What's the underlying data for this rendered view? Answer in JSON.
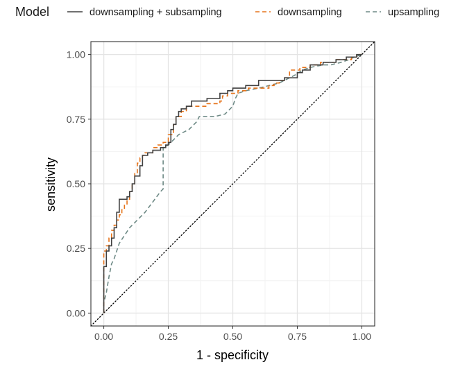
{
  "chart_data": {
    "type": "line",
    "title": "",
    "xlabel": "1 - specificity",
    "ylabel": "sensitivity",
    "xlim": [
      -0.05,
      1.05
    ],
    "ylim": [
      -0.05,
      1.05
    ],
    "x_ticks": [
      "0.00",
      "0.25",
      "0.50",
      "0.75",
      "1.00"
    ],
    "y_ticks": [
      "0.00",
      "0.25",
      "0.50",
      "0.75",
      "1.00"
    ],
    "grid": true,
    "legend": {
      "title": "Model",
      "placement": "top"
    },
    "reference_line": {
      "style": "dotted",
      "color": "#000000",
      "from": [
        0,
        0
      ],
      "to": [
        1,
        1
      ]
    },
    "series": [
      {
        "name": "downsampling + subsampling",
        "color": "#404040",
        "dash": "solid",
        "points": [
          [
            0.0,
            0.0
          ],
          [
            0.0,
            0.18
          ],
          [
            0.01,
            0.18
          ],
          [
            0.01,
            0.24
          ],
          [
            0.02,
            0.24
          ],
          [
            0.02,
            0.26
          ],
          [
            0.03,
            0.26
          ],
          [
            0.03,
            0.29
          ],
          [
            0.04,
            0.29
          ],
          [
            0.04,
            0.33
          ],
          [
            0.05,
            0.33
          ],
          [
            0.05,
            0.39
          ],
          [
            0.06,
            0.39
          ],
          [
            0.06,
            0.44
          ],
          [
            0.09,
            0.44
          ],
          [
            0.09,
            0.45
          ],
          [
            0.1,
            0.45
          ],
          [
            0.1,
            0.47
          ],
          [
            0.11,
            0.47
          ],
          [
            0.11,
            0.5
          ],
          [
            0.12,
            0.5
          ],
          [
            0.12,
            0.53
          ],
          [
            0.14,
            0.53
          ],
          [
            0.14,
            0.57
          ],
          [
            0.15,
            0.57
          ],
          [
            0.15,
            0.61
          ],
          [
            0.17,
            0.61
          ],
          [
            0.17,
            0.62
          ],
          [
            0.19,
            0.62
          ],
          [
            0.19,
            0.63
          ],
          [
            0.22,
            0.63
          ],
          [
            0.22,
            0.64
          ],
          [
            0.24,
            0.64
          ],
          [
            0.24,
            0.65
          ],
          [
            0.25,
            0.65
          ],
          [
            0.25,
            0.66
          ],
          [
            0.26,
            0.66
          ],
          [
            0.26,
            0.71
          ],
          [
            0.27,
            0.71
          ],
          [
            0.27,
            0.73
          ],
          [
            0.28,
            0.73
          ],
          [
            0.28,
            0.76
          ],
          [
            0.29,
            0.76
          ],
          [
            0.29,
            0.78
          ],
          [
            0.3,
            0.78
          ],
          [
            0.3,
            0.79
          ],
          [
            0.32,
            0.79
          ],
          [
            0.32,
            0.8
          ],
          [
            0.34,
            0.8
          ],
          [
            0.34,
            0.82
          ],
          [
            0.4,
            0.82
          ],
          [
            0.4,
            0.83
          ],
          [
            0.45,
            0.83
          ],
          [
            0.45,
            0.85
          ],
          [
            0.48,
            0.85
          ],
          [
            0.48,
            0.86
          ],
          [
            0.5,
            0.86
          ],
          [
            0.5,
            0.87
          ],
          [
            0.55,
            0.87
          ],
          [
            0.55,
            0.88
          ],
          [
            0.6,
            0.88
          ],
          [
            0.6,
            0.9
          ],
          [
            0.7,
            0.9
          ],
          [
            0.7,
            0.91
          ],
          [
            0.75,
            0.91
          ],
          [
            0.75,
            0.93
          ],
          [
            0.77,
            0.93
          ],
          [
            0.77,
            0.94
          ],
          [
            0.8,
            0.94
          ],
          [
            0.8,
            0.96
          ],
          [
            0.85,
            0.96
          ],
          [
            0.85,
            0.97
          ],
          [
            0.9,
            0.97
          ],
          [
            0.9,
            0.98
          ],
          [
            0.94,
            0.98
          ],
          [
            0.94,
            0.99
          ],
          [
            0.98,
            0.99
          ],
          [
            0.98,
            1.0
          ],
          [
            1.0,
            1.0
          ]
        ]
      },
      {
        "name": "downsampling",
        "color": "#e6731a",
        "dash": "dashed",
        "points": [
          [
            0.0,
            0.0
          ],
          [
            0.0,
            0.24
          ],
          [
            0.01,
            0.24
          ],
          [
            0.01,
            0.26
          ],
          [
            0.02,
            0.26
          ],
          [
            0.02,
            0.29
          ],
          [
            0.03,
            0.29
          ],
          [
            0.03,
            0.32
          ],
          [
            0.04,
            0.32
          ],
          [
            0.04,
            0.34
          ],
          [
            0.05,
            0.34
          ],
          [
            0.05,
            0.36
          ],
          [
            0.06,
            0.36
          ],
          [
            0.06,
            0.38
          ],
          [
            0.07,
            0.38
          ],
          [
            0.07,
            0.4
          ],
          [
            0.08,
            0.4
          ],
          [
            0.08,
            0.42
          ],
          [
            0.09,
            0.42
          ],
          [
            0.09,
            0.44
          ],
          [
            0.1,
            0.44
          ],
          [
            0.1,
            0.47
          ],
          [
            0.11,
            0.47
          ],
          [
            0.11,
            0.5
          ],
          [
            0.12,
            0.5
          ],
          [
            0.12,
            0.54
          ],
          [
            0.13,
            0.54
          ],
          [
            0.13,
            0.58
          ],
          [
            0.14,
            0.58
          ],
          [
            0.14,
            0.6
          ],
          [
            0.15,
            0.6
          ],
          [
            0.15,
            0.61
          ],
          [
            0.16,
            0.61
          ],
          [
            0.16,
            0.62
          ],
          [
            0.19,
            0.62
          ],
          [
            0.19,
            0.64
          ],
          [
            0.21,
            0.64
          ],
          [
            0.21,
            0.65
          ],
          [
            0.23,
            0.65
          ],
          [
            0.23,
            0.66
          ],
          [
            0.25,
            0.66
          ],
          [
            0.25,
            0.69
          ],
          [
            0.27,
            0.69
          ],
          [
            0.27,
            0.73
          ],
          [
            0.28,
            0.73
          ],
          [
            0.28,
            0.76
          ],
          [
            0.3,
            0.76
          ],
          [
            0.3,
            0.78
          ],
          [
            0.32,
            0.78
          ],
          [
            0.32,
            0.8
          ],
          [
            0.4,
            0.8
          ],
          [
            0.4,
            0.81
          ],
          [
            0.45,
            0.81
          ],
          [
            0.45,
            0.82
          ],
          [
            0.46,
            0.82
          ],
          [
            0.46,
            0.84
          ],
          [
            0.48,
            0.84
          ],
          [
            0.48,
            0.85
          ],
          [
            0.52,
            0.85
          ],
          [
            0.52,
            0.86
          ],
          [
            0.56,
            0.86
          ],
          [
            0.56,
            0.87
          ],
          [
            0.64,
            0.87
          ],
          [
            0.64,
            0.88
          ],
          [
            0.66,
            0.88
          ],
          [
            0.66,
            0.89
          ],
          [
            0.68,
            0.89
          ],
          [
            0.68,
            0.9
          ],
          [
            0.7,
            0.9
          ],
          [
            0.7,
            0.91
          ],
          [
            0.72,
            0.91
          ],
          [
            0.72,
            0.94
          ],
          [
            0.76,
            0.94
          ],
          [
            0.76,
            0.95
          ],
          [
            0.8,
            0.95
          ],
          [
            0.8,
            0.96
          ],
          [
            0.84,
            0.96
          ],
          [
            0.84,
            0.97
          ],
          [
            0.9,
            0.97
          ],
          [
            0.9,
            0.98
          ],
          [
            0.96,
            0.98
          ],
          [
            0.96,
            0.99
          ],
          [
            0.98,
            0.99
          ],
          [
            0.98,
            1.0
          ],
          [
            1.0,
            1.0
          ]
        ]
      },
      {
        "name": "upsampling",
        "color": "#6e8a86",
        "dash": "dashed",
        "points": [
          [
            0.0,
            0.0
          ],
          [
            0.0,
            0.04
          ],
          [
            0.01,
            0.08
          ],
          [
            0.02,
            0.14
          ],
          [
            0.03,
            0.19
          ],
          [
            0.04,
            0.21
          ],
          [
            0.05,
            0.24
          ],
          [
            0.06,
            0.27
          ],
          [
            0.08,
            0.3
          ],
          [
            0.1,
            0.33
          ],
          [
            0.13,
            0.36
          ],
          [
            0.16,
            0.39
          ],
          [
            0.19,
            0.43
          ],
          [
            0.22,
            0.47
          ],
          [
            0.23,
            0.48
          ],
          [
            0.23,
            0.64
          ],
          [
            0.25,
            0.65
          ],
          [
            0.27,
            0.67
          ],
          [
            0.29,
            0.69
          ],
          [
            0.31,
            0.7
          ],
          [
            0.33,
            0.71
          ],
          [
            0.36,
            0.74
          ],
          [
            0.37,
            0.76
          ],
          [
            0.4,
            0.76
          ],
          [
            0.43,
            0.76
          ],
          [
            0.47,
            0.77
          ],
          [
            0.5,
            0.8
          ],
          [
            0.51,
            0.83
          ],
          [
            0.52,
            0.85
          ],
          [
            0.55,
            0.86
          ],
          [
            0.6,
            0.87
          ],
          [
            0.64,
            0.88
          ],
          [
            0.68,
            0.89
          ],
          [
            0.7,
            0.9
          ],
          [
            0.74,
            0.92
          ],
          [
            0.77,
            0.94
          ],
          [
            0.8,
            0.95
          ],
          [
            0.85,
            0.96
          ],
          [
            0.88,
            0.96
          ],
          [
            0.92,
            0.97
          ],
          [
            0.95,
            0.98
          ],
          [
            0.97,
            0.99
          ],
          [
            1.0,
            1.0
          ]
        ]
      }
    ]
  }
}
